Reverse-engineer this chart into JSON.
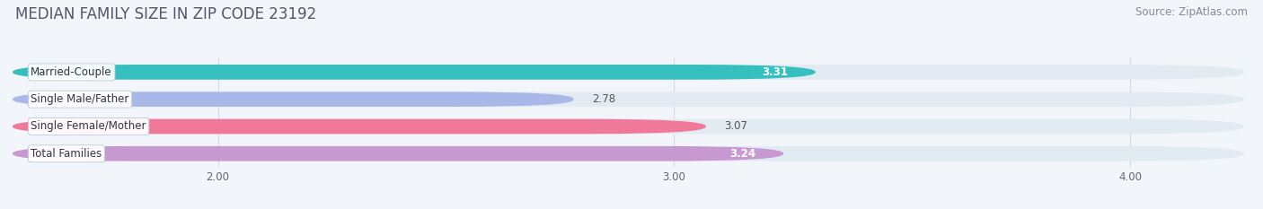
{
  "title": "MEDIAN FAMILY SIZE IN ZIP CODE 23192",
  "source": "Source: ZipAtlas.com",
  "categories": [
    "Married-Couple",
    "Single Male/Father",
    "Single Female/Mother",
    "Total Families"
  ],
  "values": [
    3.31,
    2.78,
    3.07,
    3.24
  ],
  "bar_colors": [
    "#36bfbf",
    "#a8b8e8",
    "#f07898",
    "#c898d0"
  ],
  "value_colors": [
    "#ffffff",
    "#555555",
    "#555555",
    "#ffffff"
  ],
  "xlim_left": 1.55,
  "xlim_right": 4.25,
  "xticks": [
    2.0,
    3.0,
    4.0
  ],
  "xtick_labels": [
    "2.00",
    "3.00",
    "4.00"
  ],
  "bar_height": 0.55,
  "bar_gap": 0.45,
  "title_fontsize": 12,
  "source_fontsize": 8.5,
  "label_fontsize": 8.5,
  "value_fontsize": 8.5,
  "fig_bg": "#f2f6fa",
  "bar_track_color": "#e2eaf2",
  "grid_color": "#d0d8e0",
  "label_box_ec": "#c0ccd8",
  "title_color": "#555566",
  "source_color": "#888898"
}
